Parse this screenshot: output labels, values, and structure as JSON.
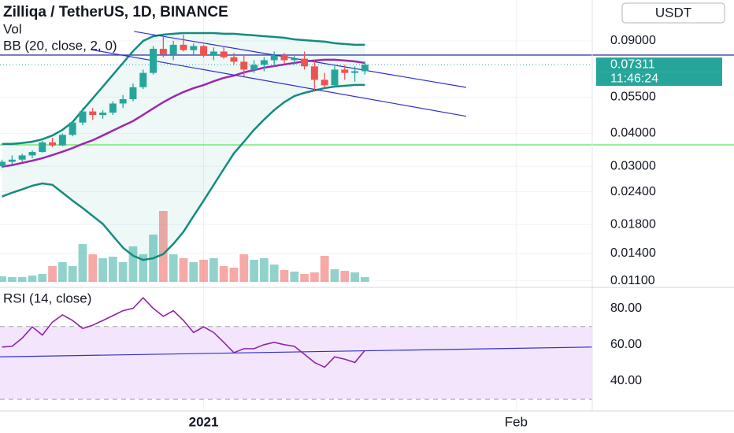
{
  "chart_data": [
    {
      "type": "candlestick",
      "title": "Zilliqa / TetherUS, 1D, BINANCE",
      "currency": "USDT",
      "log_scale": true,
      "ylim": [
        0.0106,
        0.1288
      ],
      "yticks": [
        {
          "value": 0.09,
          "label": "0.09000"
        },
        {
          "value": 0.055,
          "label": "0.05500"
        },
        {
          "value": 0.04,
          "label": "0.04000"
        },
        {
          "value": 0.03,
          "label": "0.03000"
        },
        {
          "value": 0.024,
          "label": "0.02400"
        },
        {
          "value": 0.018,
          "label": "0.01800"
        },
        {
          "value": 0.014,
          "label": "0.01400"
        },
        {
          "value": 0.011,
          "label": "0.01100"
        }
      ],
      "xlim": [
        -0.2,
        58.55
      ],
      "xticks": [
        {
          "value": 20,
          "label": "2021"
        },
        {
          "value": 51,
          "label": "Feb"
        }
      ],
      "up_color": "#26a69a",
      "down_color": "#ef5350",
      "open": [
        0.03,
        0.0312,
        0.0318,
        0.033,
        0.034,
        0.037,
        0.036,
        0.0395,
        0.044,
        0.0485,
        0.047,
        0.048,
        0.052,
        0.054,
        0.06,
        0.068,
        0.084,
        0.08,
        0.087,
        0.083,
        0.086,
        0.079,
        0.082,
        0.078,
        0.075,
        0.07,
        0.073,
        0.076,
        0.079,
        0.076,
        0.077,
        0.072,
        0.064,
        0.061,
        0.07,
        0.068,
        0.069
      ],
      "high": [
        0.0318,
        0.033,
        0.0335,
        0.0345,
        0.0375,
        0.0385,
        0.04,
        0.0445,
        0.05,
        0.05,
        0.049,
        0.053,
        0.056,
        0.062,
        0.07,
        0.086,
        0.094,
        0.09,
        0.095,
        0.088,
        0.087,
        0.085,
        0.086,
        0.081,
        0.079,
        0.076,
        0.078,
        0.082,
        0.081,
        0.079,
        0.082,
        0.076,
        0.068,
        0.072,
        0.073,
        0.072,
        0.075
      ],
      "low": [
        0.0295,
        0.0305,
        0.0312,
        0.0322,
        0.0338,
        0.0355,
        0.0358,
        0.039,
        0.043,
        0.045,
        0.0455,
        0.047,
        0.05,
        0.053,
        0.059,
        0.067,
        0.078,
        0.076,
        0.082,
        0.079,
        0.078,
        0.076,
        0.077,
        0.073,
        0.066,
        0.068,
        0.069,
        0.072,
        0.074,
        0.073,
        0.07,
        0.058,
        0.06,
        0.06,
        0.064,
        0.063,
        0.067
      ],
      "close": [
        0.0312,
        0.0318,
        0.033,
        0.034,
        0.037,
        0.036,
        0.0395,
        0.044,
        0.0485,
        0.047,
        0.048,
        0.052,
        0.054,
        0.06,
        0.068,
        0.084,
        0.08,
        0.087,
        0.083,
        0.086,
        0.079,
        0.082,
        0.078,
        0.075,
        0.07,
        0.073,
        0.076,
        0.079,
        0.076,
        0.077,
        0.072,
        0.064,
        0.061,
        0.07,
        0.068,
        0.069,
        0.0731
      ],
      "indicator": "BB (20, close, 2, 0)",
      "band_fill": "rgba(38,166,154,0.08)",
      "series": [
        {
          "name": "upper",
          "color": "#138c7e",
          "values": [
            0.0365,
            0.0365,
            0.0368,
            0.0372,
            0.038,
            0.0393,
            0.0413,
            0.0442,
            0.0491,
            0.0544,
            0.0603,
            0.0669,
            0.0742,
            0.0823,
            0.09,
            0.0938,
            0.0951,
            0.0958,
            0.0964,
            0.0964,
            0.0964,
            0.0964,
            0.0958,
            0.0958,
            0.0951,
            0.0945,
            0.0938,
            0.0932,
            0.0925,
            0.0912,
            0.0906,
            0.09,
            0.0894,
            0.0882,
            0.0876,
            0.087,
            0.087
          ]
        },
        {
          "name": "basis",
          "color": "#9c27b0",
          "values": [
            0.0299,
            0.0303,
            0.0309,
            0.0315,
            0.0322,
            0.0331,
            0.0341,
            0.0352,
            0.0365,
            0.0377,
            0.0393,
            0.041,
            0.0428,
            0.0446,
            0.0471,
            0.0498,
            0.0526,
            0.0552,
            0.0575,
            0.0595,
            0.0611,
            0.0632,
            0.0651,
            0.0664,
            0.0683,
            0.0697,
            0.0712,
            0.0722,
            0.0732,
            0.0742,
            0.0752,
            0.0758,
            0.0763,
            0.0763,
            0.0758,
            0.0752,
            0.0742
          ]
        },
        {
          "name": "lower",
          "color": "#138c7e",
          "values": [
            0.023,
            0.0238,
            0.0245,
            0.0253,
            0.0258,
            0.0255,
            0.0238,
            0.0222,
            0.0208,
            0.0194,
            0.0181,
            0.0163,
            0.0147,
            0.0137,
            0.0132,
            0.0134,
            0.0139,
            0.0152,
            0.0169,
            0.0194,
            0.0222,
            0.0255,
            0.0293,
            0.0336,
            0.0372,
            0.0413,
            0.0452,
            0.0491,
            0.0526,
            0.0555,
            0.0571,
            0.0583,
            0.0595,
            0.0603,
            0.0607,
            0.0612,
            0.0612
          ]
        }
      ],
      "hlines": [
        {
          "value": 0.0795,
          "color": "#3a3aa8"
        },
        {
          "value": 0.0362,
          "color": "#5ee35e"
        }
      ],
      "trendlines": [
        {
          "color": "#2f2fd0",
          "points": [
            [
              13.1,
              0.0978
            ],
            [
              46.05,
              0.0599
            ]
          ]
        },
        {
          "color": "#2f2fd0",
          "points": [
            [
              8.8,
              0.0834
            ],
            [
              46.05,
              0.0465
            ]
          ]
        }
      ],
      "last_price": {
        "value": 0.07311,
        "label": "0.07311"
      },
      "countdown": "11:46:24"
    },
    {
      "type": "bar",
      "title": "Vol",
      "ylim": [
        0,
        140
      ],
      "values": [
        7,
        6,
        6,
        8,
        10,
        20,
        25,
        20,
        48,
        35,
        30,
        32,
        25,
        45,
        35,
        60,
        90,
        35,
        30,
        25,
        28,
        30,
        20,
        18,
        35,
        28,
        30,
        22,
        15,
        13,
        10,
        12,
        33,
        16,
        14,
        12,
        6
      ]
    },
    {
      "type": "line",
      "title": "RSI (14, close)",
      "color": "#8e24aa",
      "ylim": [
        24.4,
        91.1
      ],
      "yticks": [
        {
          "value": 80,
          "label": "80.00"
        },
        {
          "value": 60,
          "label": "60.00"
        },
        {
          "value": 40,
          "label": "40.00"
        }
      ],
      "bands": [
        70,
        30
      ],
      "band_fill": "#f3e6fc",
      "values": [
        58.7,
        59.1,
        63.6,
        69.8,
        65.3,
        72.4,
        76.4,
        73.3,
        68.9,
        70.7,
        73.3,
        76.0,
        78.7,
        80.0,
        85.8,
        80.0,
        75.6,
        78.7,
        73.3,
        66.7,
        69.8,
        66.7,
        61.3,
        55.6,
        57.8,
        57.8,
        60.0,
        61.3,
        60.0,
        59.1,
        54.7,
        50.2,
        47.6,
        53.3,
        52.0,
        50.2,
        56.9
      ],
      "trendline": {
        "color": "#2f2fd0",
        "points": [
          [
            -0.2,
            53.3
          ],
          [
            58.55,
            58.7
          ]
        ]
      }
    }
  ]
}
